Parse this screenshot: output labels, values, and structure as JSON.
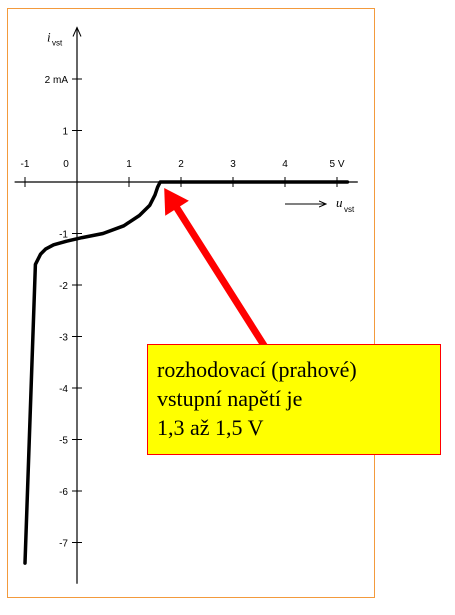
{
  "chart_data": {
    "type": "line",
    "title": "",
    "xlabel": {
      "main": "u",
      "sub": "vst"
    },
    "ylabel": {
      "main": "i",
      "sub": "vst"
    },
    "x_ticks": [
      {
        "value": -1,
        "label": "-1"
      },
      {
        "value": 0,
        "label": "0"
      },
      {
        "value": 1,
        "label": "1"
      },
      {
        "value": 2,
        "label": "2"
      },
      {
        "value": 3,
        "label": "3"
      },
      {
        "value": 4,
        "label": "4"
      },
      {
        "value": 5,
        "label": "5 V"
      }
    ],
    "y_ticks": [
      {
        "value": 2,
        "label": "2 mA"
      },
      {
        "value": 1,
        "label": "1"
      },
      {
        "value": -1,
        "label": "-1"
      },
      {
        "value": -2,
        "label": "-2"
      },
      {
        "value": -3,
        "label": "-3"
      },
      {
        "value": -4,
        "label": "-4"
      },
      {
        "value": -5,
        "label": "-5"
      },
      {
        "value": -6,
        "label": "-6"
      },
      {
        "value": -7,
        "label": "-7"
      }
    ],
    "xlim": [
      -1.2,
      5.4
    ],
    "ylim": [
      -7.8,
      3.0
    ],
    "grid": false,
    "series": [
      {
        "color": "#000000",
        "x": [
          -1.0,
          -0.8,
          -0.7,
          -0.6,
          -0.45,
          -0.2,
          0.1,
          0.5,
          0.9,
          1.2,
          1.4,
          1.5,
          1.55,
          1.6,
          2.0,
          3.0,
          4.0,
          5.0,
          5.2
        ],
        "y": [
          -7.4,
          -1.6,
          -1.4,
          -1.3,
          -1.22,
          -1.15,
          -1.08,
          -1.0,
          -0.85,
          -0.65,
          -0.45,
          -0.25,
          -0.1,
          0.0,
          0.0,
          0.0,
          0.0,
          0.0,
          0.0
        ]
      }
    ],
    "annotations": [
      {
        "lines": [
          "rozhodovací (prahové)",
          "vstupní napětí je",
          "1,3 až 1,5 V"
        ],
        "background": "#ffff00",
        "border": "#ff0000",
        "arrow_color": "#ff0000",
        "points_to": {
          "x": 1.6,
          "y": 0.0
        }
      }
    ]
  }
}
